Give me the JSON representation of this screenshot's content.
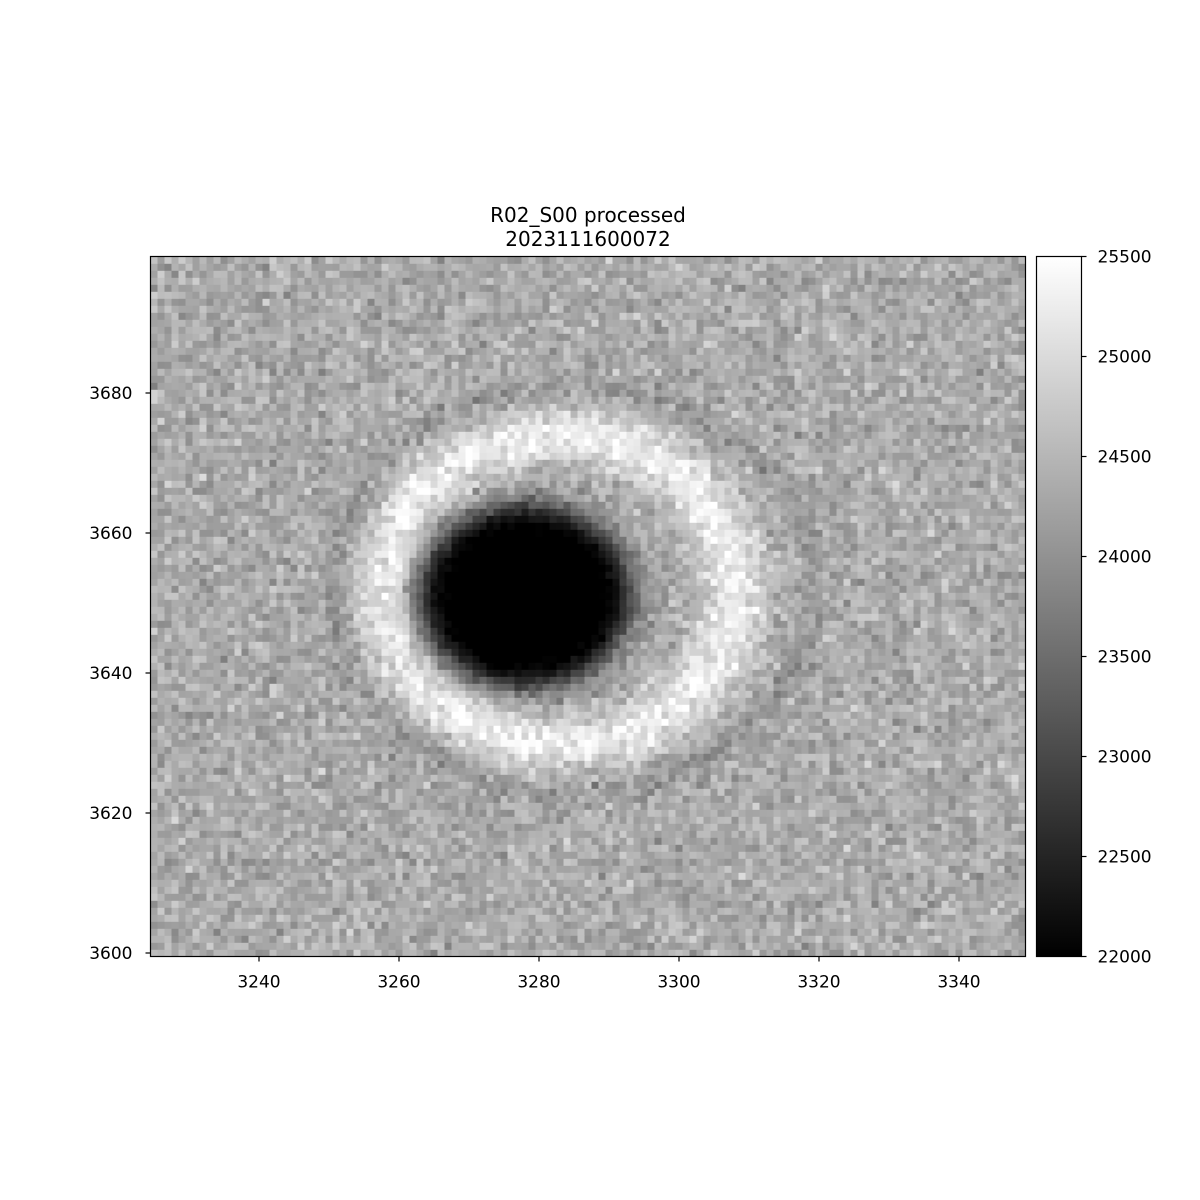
{
  "figure": {
    "title_line1": "R02_S00 processed",
    "title_line2": "2023111600072"
  },
  "chart_data": {
    "type": "heatmap",
    "colormap": "gray",
    "xlim": [
      3224.5,
      3349.5
    ],
    "ylim": [
      3599.5,
      3699.5
    ],
    "x_ticks": [
      3240,
      3260,
      3280,
      3300,
      3320,
      3340
    ],
    "x_tick_labels": [
      "3240",
      "3260",
      "3280",
      "3300",
      "3320",
      "3340"
    ],
    "y_ticks": [
      3600,
      3620,
      3640,
      3660,
      3680
    ],
    "y_tick_labels": [
      "3600",
      "3620",
      "3640",
      "3660",
      "3680"
    ],
    "colorbar": {
      "vmin": 22000,
      "vmax": 25500,
      "ticks": [
        22000,
        22500,
        23000,
        23500,
        24000,
        24500,
        25000,
        25500
      ],
      "tick_labels": [
        "22000",
        "22500",
        "23000",
        "23500",
        "24000",
        "24500",
        "25000",
        "25500"
      ]
    },
    "background_level": 24350,
    "features": [
      {
        "name": "dark core",
        "center_x": 3278,
        "center_y": 3651,
        "radius_x": 15,
        "radius_y": 13,
        "level": 21800
      },
      {
        "name": "bright ring",
        "center_x": 3283,
        "center_y": 3652,
        "radius_x": 25,
        "radius_y": 22,
        "level": 25300
      },
      {
        "name": "outer faint ring",
        "center_x": 3285,
        "center_y": 3652,
        "radius_x": 34,
        "radius_y": 29,
        "level": 23900
      }
    ],
    "title": "R02_S00 processed\n2023111600072",
    "xlabel": "",
    "ylabel": "",
    "grid": false
  }
}
